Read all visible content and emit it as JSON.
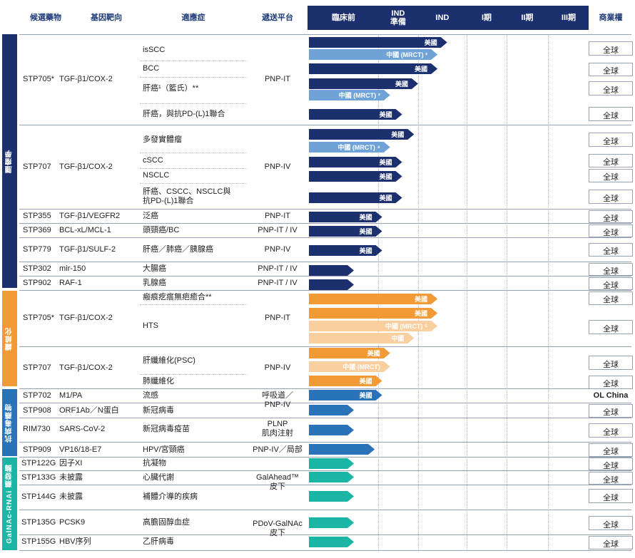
{
  "headers": {
    "candidate": "候選藥物",
    "target": "基因靶向",
    "indication": "適應症",
    "platform": "遞送平台",
    "preclinical": "臨床前",
    "ind_prep": "IND\n準備",
    "ind": "IND",
    "phase1": "I期",
    "phase2": "II期",
    "phase3": "III期",
    "rights": "商業權"
  },
  "categories": [
    {
      "label": "腫瘤學",
      "color": "#1c2f6e"
    },
    {
      "label": "纖維化",
      "color": "#f29a36"
    },
    {
      "label": "抗病毒藥物",
      "color": "#2a73b8"
    },
    {
      "label": "GalNAc-RNAi 藥發酶",
      "color": "#1bb5a6"
    }
  ],
  "groups": [
    {
      "candidate": "STP705*",
      "target": "TGF-β1/COX-2",
      "platform": "PNP-IT"
    },
    {
      "candidate": "STP707",
      "target": "TGF-β1/COX-2",
      "platform": "PNP-IV"
    },
    {
      "candidate": "STP355",
      "target": "TGF-β1/VEGFR2",
      "platform": "PNP-IT"
    },
    {
      "candidate": "STP369",
      "target": "BCL-xL/MCL-1",
      "platform": "PNP-IT / IV"
    },
    {
      "candidate": "STP779",
      "target": "TGF-β1/SULF-2",
      "platform": "PNP-IV"
    },
    {
      "candidate": "STP302",
      "target": "mir-150",
      "platform": "PNP-IT / IV"
    },
    {
      "candidate": "STP902",
      "target": "RAF-1",
      "platform": "PNP-IT / IV"
    },
    {
      "candidate": "STP705*",
      "target": "TGF-β1/COX-2",
      "platform": "PNP-IT"
    },
    {
      "candidate": "STP707",
      "target": "TGF-β1/COX-2",
      "platform": "PNP-IV"
    },
    {
      "candidate": "STP702",
      "target": "M1/PA",
      "platform": ""
    },
    {
      "candidate": "STP908",
      "target": "ORF1Ab／N蛋白",
      "platform": ""
    },
    {
      "candidate": "RIM730",
      "target": "SARS-CoV-2",
      "platform": "PLNP\n肌肉注射"
    },
    {
      "candidate": "STP909",
      "target": "VP16/18-E7",
      "platform": "PNP-IV／局部"
    },
    {
      "candidate": "STP122G",
      "target": "因子XI",
      "platform": ""
    },
    {
      "candidate": "STP133G",
      "target": "未披露",
      "platform": "GalAhead™\n皮下"
    },
    {
      "candidate": "STP144G",
      "target": "未披露",
      "platform": ""
    },
    {
      "candidate": "STP135G",
      "target": "PCSK9",
      "platform": "PDoV-GalNAc\n皮下"
    },
    {
      "candidate": "STP155G",
      "target": "HBV序列",
      "platform": ""
    }
  ],
  "shared_platform_label": "呼吸道／\nPNP-IV",
  "indications": [
    "isSCC",
    "BCC",
    "肝癌¹（籃氏）**",
    "肝癌，與抗PD-(L)1聯合",
    "多發實體瘤",
    "cSCC",
    "NSCLC",
    "肝癌、CSCC、NSCLC與\n抗PD-(L)1聯合",
    "泛癌",
    "頭頸癌/BC",
    "肝癌／肺癌／胰腺癌",
    "大腸癌",
    "乳腺癌",
    "瘢痕疙瘩無疤癒合**",
    "HTS",
    "肝纖維化(PSC)",
    "肺纖維化",
    "流感",
    "新冠病毒",
    "新冠病毒疫苗",
    "HPV/宮頸癌",
    "抗凝物",
    "心臟代謝",
    "補體介導的疾病",
    "高膽固醇血症",
    "乙肝病毒"
  ],
  "bars": [
    {
      "label": "美國",
      "progress_phase": 2.6,
      "color": "#1c2f6e"
    },
    {
      "label": "中國 (MRCT) ²",
      "progress_phase": 2.4,
      "color": "#6fa3d8"
    },
    {
      "label": "美國",
      "progress_phase": 2.4,
      "color": "#1c2f6e"
    },
    {
      "label": "美國",
      "progress_phase": 2.0,
      "color": "#1c2f6e"
    },
    {
      "label": "中國 (MRCT) ³",
      "progress_phase": 1.3,
      "color": "#6fa3d8"
    },
    {
      "label": "美國",
      "progress_phase": 1.6,
      "color": "#1c2f6e"
    },
    {
      "label": "美國",
      "progress_phase": 1.9,
      "color": "#1c2f6e"
    },
    {
      "label": "中國 (MRCT) ⁴",
      "progress_phase": 1.3,
      "color": "#6fa3d8"
    },
    {
      "label": "美國",
      "progress_phase": 1.6,
      "color": "#1c2f6e"
    },
    {
      "label": "美國",
      "progress_phase": 1.6,
      "color": "#1c2f6e"
    },
    {
      "label": "美國",
      "progress_phase": 1.6,
      "color": "#1c2f6e"
    },
    {
      "label": "美國",
      "progress_phase": 1.1,
      "color": "#1c2f6e"
    },
    {
      "label": "美國",
      "progress_phase": 1.1,
      "color": "#1c2f6e"
    },
    {
      "label": "美國",
      "progress_phase": 1.1,
      "color": "#1c2f6e"
    },
    {
      "label": "",
      "progress_phase": 0.65,
      "color": "#1c2f6e"
    },
    {
      "label": "",
      "progress_phase": 0.65,
      "color": "#1c2f6e"
    },
    {
      "label": "美國",
      "progress_phase": 2.4,
      "color": "#f29a36"
    },
    {
      "label": "美國",
      "progress_phase": 2.4,
      "color": "#f29a36"
    },
    {
      "label": "中國 (MRCT) ⁵",
      "progress_phase": 2.4,
      "color": "#f9cfa0"
    },
    {
      "label": "中國",
      "progress_phase": 1.9,
      "color": "#f9cfa0"
    },
    {
      "label": "美國",
      "progress_phase": 1.3,
      "color": "#f29a36"
    },
    {
      "label": "中國 (MRCT)",
      "progress_phase": 1.3,
      "color": "#f9cfa0"
    },
    {
      "label": "美國",
      "progress_phase": 1.1,
      "color": "#f29a36"
    },
    {
      "label": "美國",
      "progress_phase": 1.1,
      "color": "#2a73b8"
    },
    {
      "label": "",
      "progress_phase": 0.65,
      "color": "#2a73b8"
    },
    {
      "label": "",
      "progress_phase": 0.65,
      "color": "#2a73b8"
    },
    {
      "label": "",
      "progress_phase": 0.95,
      "color": "#2a73b8"
    },
    {
      "label": "",
      "progress_phase": 0.65,
      "color": "#1bb5a6"
    },
    {
      "label": "",
      "progress_phase": 0.65,
      "color": "#1bb5a6"
    },
    {
      "label": "",
      "progress_phase": 0.65,
      "color": "#1bb5a6"
    },
    {
      "label": "",
      "progress_phase": 0.65,
      "color": "#1bb5a6"
    },
    {
      "label": "",
      "progress_phase": 0.65,
      "color": "#1bb5a6"
    }
  ],
  "rights": {
    "global": "全球",
    "ol_china": "OL China"
  }
}
